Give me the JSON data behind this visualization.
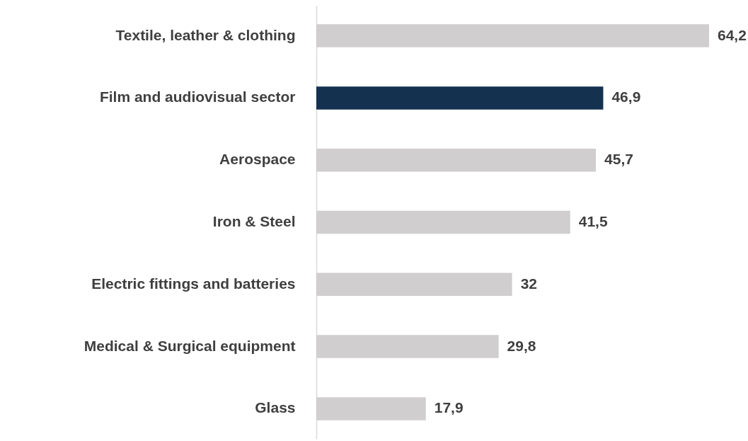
{
  "chart_data": {
    "type": "bar",
    "orientation": "horizontal",
    "tick_labels": "y",
    "categories": [
      "Textile, leather & clothing",
      "Film and audiovisual sector",
      "Aerospace",
      "Iron & Steel",
      "Electric fittings and batteries",
      "Medical & Surgical equipment",
      "Glass"
    ],
    "values": [
      64.2,
      46.9,
      45.7,
      41.5,
      32,
      29.8,
      17.9
    ],
    "value_labels": [
      "64,2",
      "46,9",
      "45,7",
      "41,5",
      "32",
      "29,8",
      "17,9"
    ],
    "colors": [
      "#d0cece",
      "#14324f",
      "#d0cece",
      "#d0cece",
      "#d0cece",
      "#d0cece",
      "#d0cece"
    ]
  }
}
